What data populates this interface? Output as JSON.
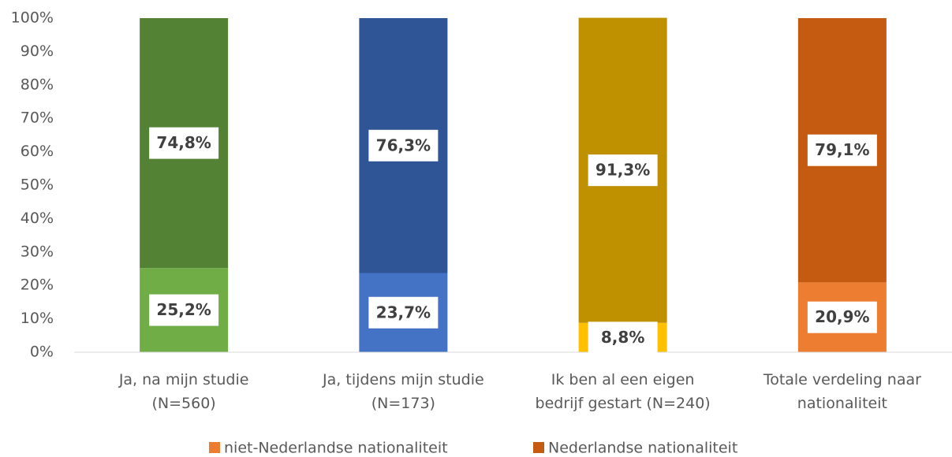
{
  "chart_data": {
    "type": "stacked_bar",
    "categories": [
      [
        "Ja, na mijn studie",
        "(N=560)"
      ],
      [
        "Ja, tijdens mijn studie",
        "(N=173)"
      ],
      [
        "Ik ben al een eigen",
        "bedrijf gestart (N=240)"
      ],
      [
        "Totale verdeling naar",
        "nationaliteit"
      ]
    ],
    "series": [
      {
        "name": "niet-Nederlandse nationaliteit",
        "color": "#ed7d31",
        "colors": [
          "#70ad47",
          "#4472c4",
          "#ffc000",
          "#ed7d31"
        ],
        "values": [
          25.2,
          23.7,
          8.8,
          20.9
        ],
        "value_labels": [
          "25,2%",
          "23,7%",
          "8,8%",
          "20,9%"
        ]
      },
      {
        "name": "Nederlandse nationaliteit",
        "color": "#c55a11",
        "colors": [
          "#548235",
          "#2f5597",
          "#bf9000",
          "#c55a11"
        ],
        "values": [
          74.8,
          76.3,
          91.3,
          79.1
        ],
        "value_labels": [
          "74,8%",
          "76,3%",
          "91,3%",
          "79,1%"
        ]
      }
    ],
    "ylim": [
      0,
      100
    ],
    "yticks": [
      {
        "value": 0,
        "label": "0%"
      },
      {
        "value": 10,
        "label": "10%"
      },
      {
        "value": 20,
        "label": "20%"
      },
      {
        "value": 30,
        "label": "30%"
      },
      {
        "value": 40,
        "label": "40%"
      },
      {
        "value": 50,
        "label": "50%"
      },
      {
        "value": 60,
        "label": "60%"
      },
      {
        "value": 70,
        "label": "70%"
      },
      {
        "value": 80,
        "label": "80%"
      },
      {
        "value": 90,
        "label": "90%"
      },
      {
        "value": 100,
        "label": "100%"
      }
    ],
    "grid": false,
    "legend": "bottom"
  }
}
